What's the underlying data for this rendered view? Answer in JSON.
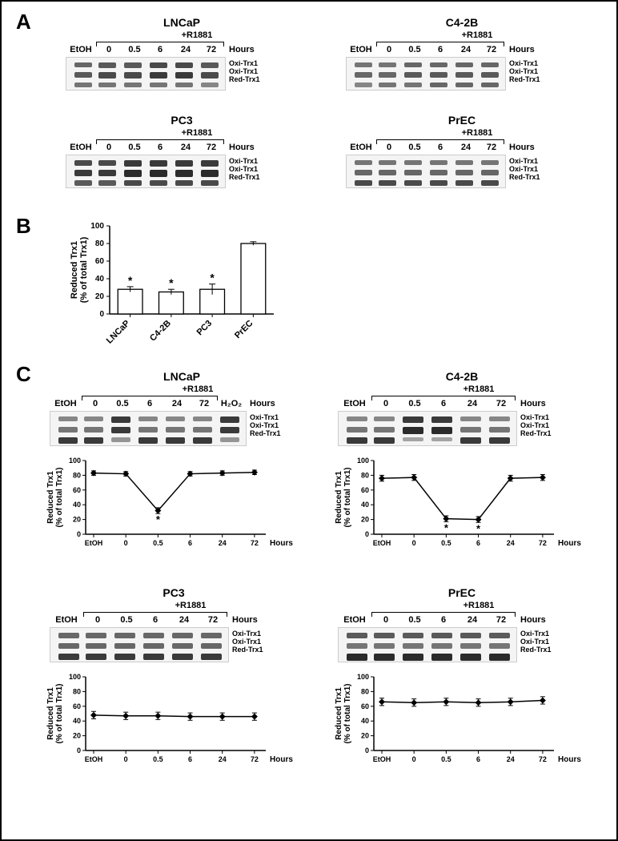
{
  "panels": {
    "A": "A",
    "B": "B",
    "C": "C"
  },
  "common": {
    "treatment": "+R1881",
    "etoh": "EtOH",
    "hours_label": "Hours",
    "timepoints": [
      "0",
      "0.5",
      "6",
      "24",
      "72"
    ],
    "h2o2": "H₂O₂",
    "band_labels": [
      "Oxi-Trx1",
      "Oxi-Trx1",
      "Red-Trx1"
    ]
  },
  "panelA": {
    "cells": {
      "LNCaP": "LNCaP",
      "C42B": "C4-2B",
      "PC3": "PC3",
      "PrEC": "PrEC"
    }
  },
  "panelB": {
    "y_label": "Reduced Trx1\n(% of total Trx1)",
    "y_ticks": [
      0,
      20,
      40,
      60,
      80,
      100
    ],
    "categories": [
      "LNCaP",
      "C4-2B",
      "PC3",
      "PrEC"
    ],
    "values": [
      28,
      25,
      28,
      80
    ],
    "errors": [
      3,
      3,
      6,
      2
    ],
    "significant": [
      true,
      true,
      true,
      false
    ],
    "bar_fill": "#ffffff",
    "bar_stroke": "#000000",
    "star": "*"
  },
  "panelC": {
    "y_label_line1": "Reduced Trx1",
    "y_label_line2": "(% of total Trx1)",
    "y_ticks": [
      0,
      20,
      40,
      60,
      80,
      100
    ],
    "x_categories": [
      "EtOH",
      "0",
      "0.5",
      "6",
      "24",
      "72"
    ],
    "hours_label": "Hours",
    "series": {
      "LNCaP": {
        "title": "LNCaP",
        "values": [
          83,
          82,
          32,
          82,
          83,
          84
        ],
        "errors": [
          3,
          3,
          4,
          3,
          3,
          3
        ],
        "significant": [
          false,
          false,
          true,
          false,
          false,
          false
        ],
        "has_h2o2_lane": true
      },
      "C42B": {
        "title": "C4-2B",
        "values": [
          76,
          77,
          21,
          20,
          76,
          77
        ],
        "errors": [
          4,
          4,
          4,
          4,
          4,
          4
        ],
        "significant": [
          false,
          false,
          true,
          true,
          false,
          false
        ],
        "has_h2o2_lane": false
      },
      "PC3": {
        "title": "PC3",
        "values": [
          48,
          47,
          47,
          46,
          46,
          46
        ],
        "errors": [
          5,
          5,
          5,
          5,
          5,
          5
        ],
        "significant": [
          false,
          false,
          false,
          false,
          false,
          false
        ],
        "has_h2o2_lane": false
      },
      "PrEC": {
        "title": "PrEC",
        "values": [
          66,
          65,
          66,
          65,
          66,
          68
        ],
        "errors": [
          5,
          5,
          5,
          5,
          5,
          5
        ],
        "significant": [
          false,
          false,
          false,
          false,
          false,
          false
        ],
        "has_h2o2_lane": false
      }
    },
    "marker_fill": "#000000",
    "line_color": "#000000"
  },
  "style": {
    "colors": {
      "axis": "#000000",
      "bg": "#ffffff",
      "band_dark": "#2b2b2b"
    },
    "fontsize": {
      "panel_label": 26,
      "title": 14,
      "lane": 11,
      "side": 9,
      "axis": 10
    }
  }
}
